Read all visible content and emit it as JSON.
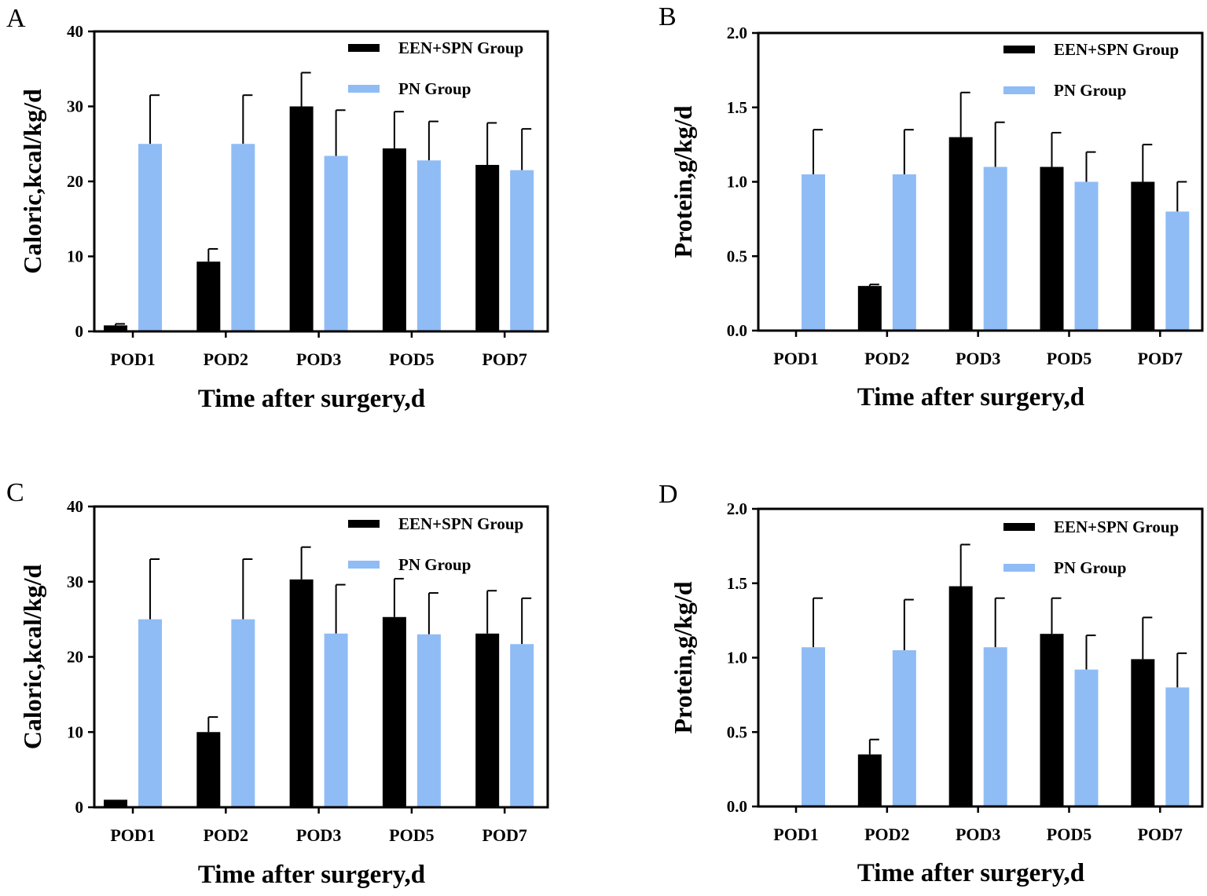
{
  "colors": {
    "een": "#000000",
    "pn": "#8fbcf5"
  },
  "chart_data": [
    {
      "type": "bar",
      "panel_label": "A",
      "categories": [
        "POD1",
        "POD2",
        "POD3",
        "POD5",
        "POD7"
      ],
      "xlabel": "Time after surgery,d",
      "ylabel": "Caloric,kcal/kg/d",
      "ylim": [
        0,
        40
      ],
      "yticks": [
        "0",
        "10",
        "20",
        "30",
        "40"
      ],
      "ytick_values": [
        0,
        10,
        20,
        30,
        40
      ],
      "series": [
        {
          "name": "EEN+SPN Group",
          "values": [
            0.8,
            9.3,
            30.0,
            24.4,
            22.2
          ],
          "error_upper": [
            1.0,
            11.0,
            34.5,
            29.3,
            27.8
          ]
        },
        {
          "name": "PN Group",
          "values": [
            25.0,
            25.0,
            23.4,
            22.8,
            21.5
          ],
          "error_upper": [
            31.5,
            31.5,
            29.5,
            28.0,
            27.0
          ]
        }
      ]
    },
    {
      "type": "bar",
      "panel_label": "B",
      "categories": [
        "POD1",
        "POD2",
        "POD3",
        "POD5",
        "POD7"
      ],
      "xlabel": "Time after surgery,d",
      "ylabel": "Protein,g/kg/d",
      "ylim": [
        0,
        2
      ],
      "yticks": [
        "0.0",
        "0.5",
        "1.0",
        "1.5",
        "2.0"
      ],
      "ytick_values": [
        0,
        0.5,
        1,
        1.5,
        2
      ],
      "series": [
        {
          "name": "EEN+SPN Group",
          "values": [
            0,
            0.3,
            1.3,
            1.1,
            1.0
          ],
          "error_upper": [
            0,
            0.31,
            1.6,
            1.33,
            1.25
          ]
        },
        {
          "name": "PN Group",
          "values": [
            1.05,
            1.05,
            1.1,
            1.0,
            0.8
          ],
          "error_upper": [
            1.35,
            1.35,
            1.4,
            1.2,
            1.0
          ]
        }
      ]
    },
    {
      "type": "bar",
      "panel_label": "C",
      "categories": [
        "POD1",
        "POD2",
        "POD3",
        "POD5",
        "POD7"
      ],
      "xlabel": "Time after surgery,d",
      "ylabel": "Caloric,kcal/kg/d",
      "ylim": [
        0,
        40
      ],
      "yticks": [
        "0",
        "10",
        "20",
        "30",
        "40"
      ],
      "ytick_values": [
        0,
        10,
        20,
        30,
        40
      ],
      "series": [
        {
          "name": "EEN+SPN Group",
          "values": [
            1.0,
            10.0,
            30.3,
            25.3,
            23.1
          ],
          "error_upper": [
            1.0,
            12.0,
            34.6,
            30.4,
            28.8
          ]
        },
        {
          "name": "PN Group",
          "values": [
            25.0,
            25.0,
            23.1,
            23.0,
            21.7
          ],
          "error_upper": [
            33.0,
            33.0,
            29.6,
            28.5,
            27.8
          ]
        }
      ]
    },
    {
      "type": "bar",
      "panel_label": "D",
      "categories": [
        "POD1",
        "POD2",
        "POD3",
        "POD5",
        "POD7"
      ],
      "xlabel": "Time after surgery,d",
      "ylabel": "Protein,g/kg/d",
      "ylim": [
        0,
        2
      ],
      "yticks": [
        "0.0",
        "0.5",
        "1.0",
        "1.5",
        "2.0"
      ],
      "ytick_values": [
        0,
        0.5,
        1,
        1.5,
        2
      ],
      "series": [
        {
          "name": "EEN+SPN Group",
          "values": [
            0,
            0.35,
            1.48,
            1.16,
            0.99
          ],
          "error_upper": [
            0,
            0.45,
            1.76,
            1.4,
            1.27
          ]
        },
        {
          "name": "PN Group",
          "values": [
            1.07,
            1.05,
            1.07,
            0.92,
            0.8
          ],
          "error_upper": [
            1.4,
            1.39,
            1.4,
            1.15,
            1.03
          ]
        }
      ]
    }
  ]
}
